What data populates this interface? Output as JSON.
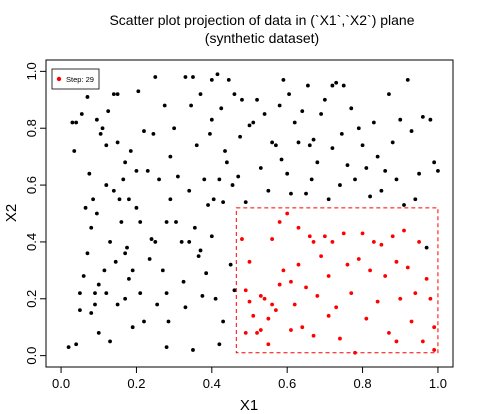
{
  "chart_data": {
    "type": "scatter",
    "title": "Scatter plot projection of data in (`X1`,`X2`) plane",
    "subtitle": "(synthetic dataset)",
    "xlabel": "X1",
    "ylabel": "X2",
    "xlim": [
      -0.04,
      1.04
    ],
    "ylim": [
      -0.04,
      1.04
    ],
    "xticks": [
      "0.0",
      "0.2",
      "0.4",
      "0.6",
      "0.8",
      "1.0"
    ],
    "yticks": [
      "0.0",
      "0.2",
      "0.4",
      "0.6",
      "0.8",
      "1.0"
    ],
    "grid": false,
    "legend": {
      "placement": "top-left",
      "label": "Step: 29",
      "color": "#ff0000"
    },
    "selection_box": {
      "x": [
        0.465,
        1.0
      ],
      "y": [
        0.01,
        0.52
      ],
      "color": "#ff0000",
      "style": "dashed"
    },
    "colors": {
      "background": "#000000",
      "highlight": "#ff0000"
    },
    "series": [
      {
        "color": "#000000",
        "points": [
          [
            0.0,
            0.95
          ],
          [
            0.02,
            0.03
          ],
          [
            0.03,
            0.82
          ],
          [
            0.035,
            0.72
          ],
          [
            0.04,
            0.82
          ],
          [
            0.04,
            0.04
          ],
          [
            0.05,
            0.22
          ],
          [
            0.05,
            0.16
          ],
          [
            0.055,
            0.85
          ],
          [
            0.06,
            0.28
          ],
          [
            0.065,
            0.52
          ],
          [
            0.07,
            0.36
          ],
          [
            0.075,
            0.64
          ],
          [
            0.08,
            0.15
          ],
          [
            0.08,
            0.45
          ],
          [
            0.085,
            0.55
          ],
          [
            0.09,
            0.18
          ],
          [
            0.095,
            0.5
          ],
          [
            0.095,
            0.83
          ],
          [
            0.1,
            0.08
          ],
          [
            0.1,
            0.25
          ],
          [
            0.105,
            0.78
          ],
          [
            0.11,
            0.8
          ],
          [
            0.115,
            0.3
          ],
          [
            0.12,
            0.6
          ],
          [
            0.12,
            0.22
          ],
          [
            0.125,
            0.86
          ],
          [
            0.13,
            0.4
          ],
          [
            0.13,
            0.05
          ],
          [
            0.14,
            0.92
          ],
          [
            0.14,
            0.58
          ],
          [
            0.145,
            0.33
          ],
          [
            0.15,
            0.75
          ],
          [
            0.15,
            0.18
          ],
          [
            0.155,
            0.55
          ],
          [
            0.16,
            0.47
          ],
          [
            0.165,
            0.62
          ],
          [
            0.17,
            0.2
          ],
          [
            0.17,
            0.68
          ],
          [
            0.175,
            0.38
          ],
          [
            0.18,
            0.55
          ],
          [
            0.185,
            0.72
          ],
          [
            0.19,
            0.1
          ],
          [
            0.19,
            0.3
          ],
          [
            0.2,
            0.52
          ],
          [
            0.2,
            0.65
          ],
          [
            0.205,
            0.93
          ],
          [
            0.21,
            0.22
          ],
          [
            0.22,
            0.79
          ],
          [
            0.22,
            0.12
          ],
          [
            0.23,
            0.65
          ],
          [
            0.235,
            0.34
          ],
          [
            0.24,
            0.41
          ],
          [
            0.245,
            0.78
          ],
          [
            0.25,
            0.4
          ],
          [
            0.255,
            0.18
          ],
          [
            0.26,
            0.62
          ],
          [
            0.27,
            0.3
          ],
          [
            0.275,
            0.88
          ],
          [
            0.28,
            0.22
          ],
          [
            0.285,
            0.12
          ],
          [
            0.29,
            0.55
          ],
          [
            0.3,
            0.8
          ],
          [
            0.305,
            0.47
          ],
          [
            0.31,
            0.63
          ],
          [
            0.32,
            0.4
          ],
          [
            0.325,
            0.26
          ],
          [
            0.33,
            0.98
          ],
          [
            0.33,
            0.17
          ],
          [
            0.34,
            0.58
          ],
          [
            0.345,
            0.88
          ],
          [
            0.35,
            0.98
          ],
          [
            0.35,
            0.02
          ],
          [
            0.355,
            0.45
          ],
          [
            0.36,
            0.74
          ],
          [
            0.365,
            0.35
          ],
          [
            0.37,
            0.92
          ],
          [
            0.375,
            0.21
          ],
          [
            0.38,
            0.62
          ],
          [
            0.385,
            0.29
          ],
          [
            0.39,
            0.53
          ],
          [
            0.395,
            0.78
          ],
          [
            0.4,
            0.83
          ],
          [
            0.4,
            0.42
          ],
          [
            0.405,
            0.55
          ],
          [
            0.41,
            0.2
          ],
          [
            0.415,
            0.99
          ],
          [
            0.42,
            0.62
          ],
          [
            0.42,
            0.04
          ],
          [
            0.425,
            0.87
          ],
          [
            0.43,
            0.54
          ],
          [
            0.435,
            0.72
          ],
          [
            0.44,
            0.68
          ],
          [
            0.445,
            0.97
          ],
          [
            0.45,
            0.32
          ],
          [
            0.455,
            0.6
          ],
          [
            0.46,
            0.92
          ],
          [
            0.47,
            0.63
          ],
          [
            0.475,
            0.77
          ],
          [
            0.48,
            0.9
          ],
          [
            0.49,
            0.54
          ],
          [
            0.5,
            0.81
          ],
          [
            0.51,
            0.82
          ],
          [
            0.52,
            0.9
          ],
          [
            0.53,
            0.66
          ],
          [
            0.54,
            0.85
          ],
          [
            0.55,
            0.58
          ],
          [
            0.56,
            0.75
          ],
          [
            0.57,
            0.74
          ],
          [
            0.58,
            0.88
          ],
          [
            0.585,
            0.69
          ],
          [
            0.59,
            0.97
          ],
          [
            0.6,
            0.64
          ],
          [
            0.605,
            0.92
          ],
          [
            0.61,
            0.57
          ],
          [
            0.62,
            0.82
          ],
          [
            0.63,
            0.75
          ],
          [
            0.64,
            0.86
          ],
          [
            0.65,
            0.57
          ],
          [
            0.655,
            0.95
          ],
          [
            0.66,
            0.74
          ],
          [
            0.665,
            0.62
          ],
          [
            0.67,
            0.76
          ],
          [
            0.68,
            0.68
          ],
          [
            0.69,
            0.85
          ],
          [
            0.7,
            0.9
          ],
          [
            0.71,
            0.55
          ],
          [
            0.72,
            0.73
          ],
          [
            0.73,
            0.96
          ],
          [
            0.74,
            0.6
          ],
          [
            0.745,
            0.78
          ],
          [
            0.75,
            0.95
          ],
          [
            0.76,
            0.67
          ],
          [
            0.77,
            0.87
          ],
          [
            0.78,
            0.62
          ],
          [
            0.79,
            0.8
          ],
          [
            0.8,
            0.74
          ],
          [
            0.81,
            0.66
          ],
          [
            0.82,
            0.56
          ],
          [
            0.83,
            0.82
          ],
          [
            0.84,
            0.7
          ],
          [
            0.85,
            0.58
          ],
          [
            0.86,
            0.65
          ],
          [
            0.87,
            0.92
          ],
          [
            0.88,
            0.75
          ],
          [
            0.89,
            0.62
          ],
          [
            0.9,
            0.83
          ],
          [
            0.91,
            0.53
          ],
          [
            0.92,
            0.97
          ],
          [
            0.93,
            0.79
          ],
          [
            0.94,
            0.55
          ],
          [
            0.95,
            0.64
          ],
          [
            0.96,
            0.84
          ],
          [
            0.97,
            0.38
          ],
          [
            0.98,
            0.83
          ],
          [
            0.99,
            0.68
          ],
          [
            1.0,
            0.65
          ],
          [
            0.72,
            0.95
          ],
          [
            0.4,
            0.97
          ],
          [
            0.25,
            0.98
          ],
          [
            0.15,
            0.92
          ],
          [
            0.07,
            0.91
          ],
          [
            0.12,
            0.74
          ],
          [
            0.21,
            0.47
          ],
          [
            0.28,
            0.47
          ],
          [
            0.18,
            0.27
          ],
          [
            0.28,
            0.03
          ],
          [
            0.09,
            0.22
          ],
          [
            0.17,
            0.36
          ],
          [
            0.34,
            0.4
          ],
          [
            0.37,
            0.37
          ],
          [
            0.29,
            0.7
          ],
          [
            0.46,
            0.23
          ],
          [
            0.43,
            0.12
          ]
        ]
      },
      {
        "color": "#ff0000",
        "points": [
          [
            0.48,
            0.41
          ],
          [
            0.49,
            0.23
          ],
          [
            0.49,
            0.08
          ],
          [
            0.5,
            0.33
          ],
          [
            0.5,
            0.19
          ],
          [
            0.51,
            0.14
          ],
          [
            0.52,
            0.08
          ],
          [
            0.53,
            0.21
          ],
          [
            0.53,
            0.09
          ],
          [
            0.54,
            0.2
          ],
          [
            0.55,
            0.13
          ],
          [
            0.55,
            0.04
          ],
          [
            0.56,
            0.18
          ],
          [
            0.56,
            0.41
          ],
          [
            0.57,
            0.16
          ],
          [
            0.58,
            0.25
          ],
          [
            0.58,
            0.47
          ],
          [
            0.59,
            0.3
          ],
          [
            0.6,
            0.5
          ],
          [
            0.61,
            0.26
          ],
          [
            0.61,
            0.09
          ],
          [
            0.62,
            0.18
          ],
          [
            0.63,
            0.32
          ],
          [
            0.63,
            0.45
          ],
          [
            0.64,
            0.1
          ],
          [
            0.65,
            0.24
          ],
          [
            0.66,
            0.42
          ],
          [
            0.67,
            0.07
          ],
          [
            0.67,
            0.4
          ],
          [
            0.68,
            0.21
          ],
          [
            0.69,
            0.35
          ],
          [
            0.7,
            0.42
          ],
          [
            0.71,
            0.28
          ],
          [
            0.71,
            0.14
          ],
          [
            0.72,
            0.4
          ],
          [
            0.73,
            0.17
          ],
          [
            0.74,
            0.06
          ],
          [
            0.75,
            0.43
          ],
          [
            0.76,
            0.32
          ],
          [
            0.77,
            0.22
          ],
          [
            0.78,
            0.01
          ],
          [
            0.79,
            0.34
          ],
          [
            0.8,
            0.43
          ],
          [
            0.81,
            0.13
          ],
          [
            0.82,
            0.3
          ],
          [
            0.83,
            0.4
          ],
          [
            0.84,
            0.19
          ],
          [
            0.85,
            0.39
          ],
          [
            0.86,
            0.28
          ],
          [
            0.87,
            0.08
          ],
          [
            0.88,
            0.42
          ],
          [
            0.89,
            0.33
          ],
          [
            0.89,
            0.05
          ],
          [
            0.9,
            0.2
          ],
          [
            0.91,
            0.44
          ],
          [
            0.92,
            0.31
          ],
          [
            0.93,
            0.12
          ],
          [
            0.94,
            0.22
          ],
          [
            0.95,
            0.4
          ],
          [
            0.96,
            0.05
          ],
          [
            0.97,
            0.27
          ],
          [
            0.98,
            0.2
          ],
          [
            0.99,
            0.1
          ],
          [
            0.99,
            0.02
          ]
        ]
      }
    ]
  }
}
